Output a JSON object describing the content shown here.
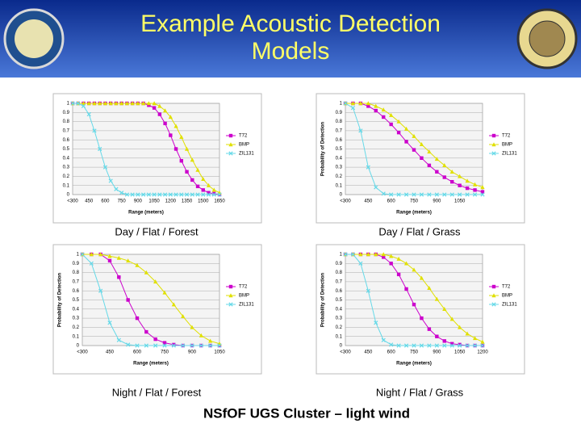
{
  "slide": {
    "title": [
      "Example Acoustic Detection",
      "Models"
    ],
    "footer": "NSfOF UGS Cluster – light wind"
  },
  "chart_data": [
    {
      "type": "line",
      "caption": "Day / Flat / Forest",
      "x_label": "Range (meters)",
      "categories": [
        "<300",
        null,
        null,
        "450",
        null,
        null,
        "600",
        null,
        null,
        "750",
        null,
        null,
        "900",
        null,
        null,
        "1050",
        null,
        null,
        "1200",
        null,
        null,
        "1350",
        null,
        null,
        "1500",
        null,
        null,
        "1650"
      ],
      "ylim": [
        0,
        1
      ],
      "yticks": [
        0,
        0.1,
        0.2,
        0.3,
        0.4,
        0.5,
        0.6,
        0.7,
        0.8,
        0.9,
        1
      ],
      "grid": true,
      "series": [
        {
          "name": "T72",
          "color": "#cc00cc",
          "marker": "square",
          "values": [
            1,
            1,
            1,
            1,
            1,
            1,
            1,
            1,
            1,
            1,
            1,
            1,
            1,
            1,
            0.98,
            0.95,
            0.88,
            0.78,
            0.65,
            0.5,
            0.37,
            0.25,
            0.16,
            0.09,
            0.05,
            0.02,
            0.01,
            0
          ]
        },
        {
          "name": "BMP",
          "color": "#e0e000",
          "marker": "triangle",
          "values": [
            1,
            1,
            1,
            1,
            1,
            1,
            1,
            1,
            1,
            1,
            1,
            1,
            1,
            1,
            1,
            1,
            0.97,
            0.92,
            0.85,
            0.75,
            0.63,
            0.5,
            0.38,
            0.27,
            0.17,
            0.1,
            0.05,
            0.02
          ]
        },
        {
          "name": "ZIL131",
          "color": "#66d9e8",
          "marker": "x",
          "values": [
            1,
            1,
            0.97,
            0.88,
            0.7,
            0.5,
            0.3,
            0.15,
            0.06,
            0.02,
            0,
            0,
            0,
            0,
            0,
            0,
            0,
            0,
            0,
            0,
            0,
            0,
            0,
            0,
            0,
            0,
            0,
            0
          ]
        }
      ]
    },
    {
      "type": "line",
      "caption": "Day / Flat / Grass",
      "x_label": "Range (meters)",
      "y_label": "Probability of Detection",
      "categories": [
        "<300",
        null,
        null,
        "450",
        null,
        null,
        "600",
        null,
        null,
        "750",
        null,
        null,
        "900",
        null,
        null,
        "1050",
        null,
        null,
        null
      ],
      "ylim": [
        0,
        1
      ],
      "yticks": [
        0,
        0.1,
        0.2,
        0.3,
        0.4,
        0.5,
        0.6,
        0.7,
        0.8,
        0.9,
        1
      ],
      "grid": true,
      "series": [
        {
          "name": "T72",
          "color": "#cc00cc",
          "marker": "square",
          "values": [
            1,
            1,
            1,
            0.97,
            0.92,
            0.85,
            0.77,
            0.68,
            0.58,
            0.49,
            0.4,
            0.32,
            0.25,
            0.19,
            0.14,
            0.1,
            0.07,
            0.05,
            0.03
          ]
        },
        {
          "name": "BMP",
          "color": "#e0e000",
          "marker": "triangle",
          "values": [
            1,
            1,
            1,
            1,
            0.97,
            0.93,
            0.87,
            0.8,
            0.72,
            0.64,
            0.55,
            0.47,
            0.39,
            0.32,
            0.25,
            0.2,
            0.15,
            0.11,
            0.08
          ]
        },
        {
          "name": "ZIL131",
          "color": "#66d9e8",
          "marker": "x",
          "values": [
            1,
            0.95,
            0.7,
            0.3,
            0.08,
            0.01,
            0,
            0,
            0,
            0,
            0,
            0,
            0,
            0,
            0,
            0,
            0,
            0,
            0
          ]
        }
      ]
    },
    {
      "type": "line",
      "caption": "Night / Flat / Forest",
      "x_label": "Range (meters)",
      "y_label": "Probability of Detection",
      "categories": [
        "<300",
        null,
        null,
        "450",
        null,
        null,
        "600",
        null,
        null,
        "750",
        null,
        null,
        "900",
        null,
        null,
        "1050"
      ],
      "ylim": [
        0,
        1
      ],
      "yticks": [
        0,
        0.1,
        0.2,
        0.3,
        0.4,
        0.5,
        0.6,
        0.7,
        0.8,
        0.9,
        1
      ],
      "grid": true,
      "series": [
        {
          "name": "T72",
          "color": "#cc00cc",
          "marker": "square",
          "values": [
            1,
            1,
            1,
            0.93,
            0.75,
            0.5,
            0.3,
            0.15,
            0.07,
            0.03,
            0.01,
            0,
            0,
            0,
            0,
            0
          ]
        },
        {
          "name": "BMP",
          "color": "#e0e000",
          "marker": "triangle",
          "values": [
            1,
            1,
            1,
            0.98,
            0.96,
            0.93,
            0.88,
            0.8,
            0.7,
            0.58,
            0.45,
            0.32,
            0.2,
            0.11,
            0.05,
            0.02
          ]
        },
        {
          "name": "ZIL131",
          "color": "#66d9e8",
          "marker": "x",
          "values": [
            1,
            0.9,
            0.6,
            0.25,
            0.06,
            0.01,
            0,
            0,
            0,
            0,
            0,
            0,
            0,
            0,
            0,
            0
          ]
        }
      ]
    },
    {
      "type": "line",
      "caption": "Night / Flat / Grass",
      "x_label": "Range (meters)",
      "y_label": "Probability of Detection",
      "categories": [
        "<300",
        null,
        null,
        "450",
        null,
        null,
        "600",
        null,
        null,
        "750",
        null,
        null,
        "900",
        null,
        null,
        "1050",
        null,
        null,
        "1200"
      ],
      "ylim": [
        0,
        1
      ],
      "yticks": [
        0,
        0.1,
        0.2,
        0.3,
        0.4,
        0.5,
        0.6,
        0.7,
        0.8,
        0.9,
        1
      ],
      "grid": true,
      "series": [
        {
          "name": "T72",
          "color": "#cc00cc",
          "marker": "square",
          "values": [
            1,
            1,
            1,
            1,
            1,
            0.97,
            0.9,
            0.78,
            0.62,
            0.45,
            0.3,
            0.18,
            0.1,
            0.05,
            0.02,
            0.01,
            0,
            0,
            0
          ]
        },
        {
          "name": "BMP",
          "color": "#e0e000",
          "marker": "triangle",
          "values": [
            1,
            1,
            1,
            1,
            1,
            1,
            0.98,
            0.95,
            0.9,
            0.83,
            0.74,
            0.63,
            0.51,
            0.4,
            0.29,
            0.2,
            0.13,
            0.08,
            0.04
          ]
        },
        {
          "name": "ZIL131",
          "color": "#66d9e8",
          "marker": "x",
          "values": [
            1,
            1,
            0.9,
            0.6,
            0.25,
            0.06,
            0.01,
            0,
            0,
            0,
            0,
            0,
            0,
            0,
            0,
            0,
            0,
            0,
            0
          ]
        }
      ]
    }
  ]
}
